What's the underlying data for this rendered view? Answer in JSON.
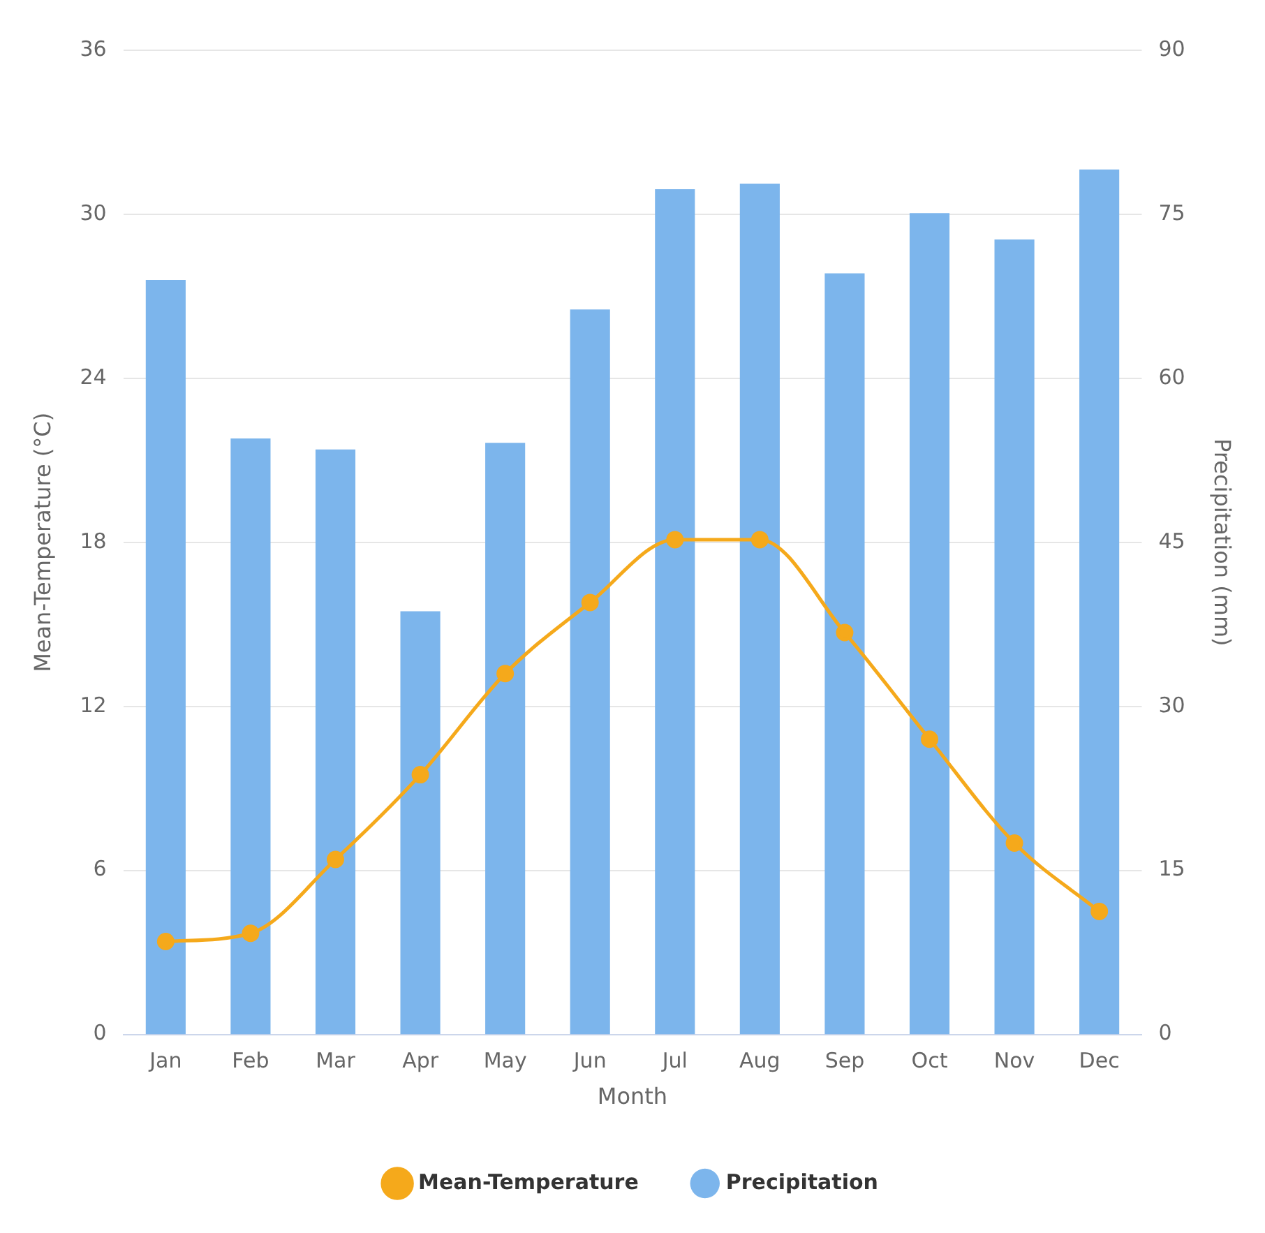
{
  "chart_data": {
    "type": "bar",
    "categories": [
      "Jan",
      "Feb",
      "Mar",
      "Apr",
      "May",
      "Jun",
      "Jul",
      "Aug",
      "Sep",
      "Oct",
      "Nov",
      "Dec"
    ],
    "series": [
      {
        "name": "Mean-Temperature",
        "type": "line",
        "color": "#f5a91b",
        "values": [
          3.4,
          3.7,
          6.4,
          9.5,
          13.2,
          15.8,
          18.1,
          18.1,
          14.7,
          10.8,
          7.0,
          4.5
        ]
      },
      {
        "name": "Precipitation",
        "axis": "y2",
        "color": "#7cb5ec",
        "values": [
          69,
          54.5,
          53.5,
          38.7,
          54.1,
          66.3,
          77.3,
          77.8,
          69.6,
          75.1,
          72.7,
          79.1
        ]
      }
    ],
    "xlabel": "Month",
    "ylabel": "Mean-Temperature (°C)",
    "y2label": "Precipitation (mm)",
    "ylim": [
      0,
      36
    ],
    "yticks": [
      0,
      6,
      12,
      18,
      24,
      30,
      36
    ],
    "y2lim": [
      0,
      90
    ],
    "y2ticks": [
      0,
      15,
      30,
      45,
      60,
      75,
      90
    ],
    "grid": "y",
    "legend": "bottom",
    "marker": "circle",
    "line_style": "solid"
  }
}
